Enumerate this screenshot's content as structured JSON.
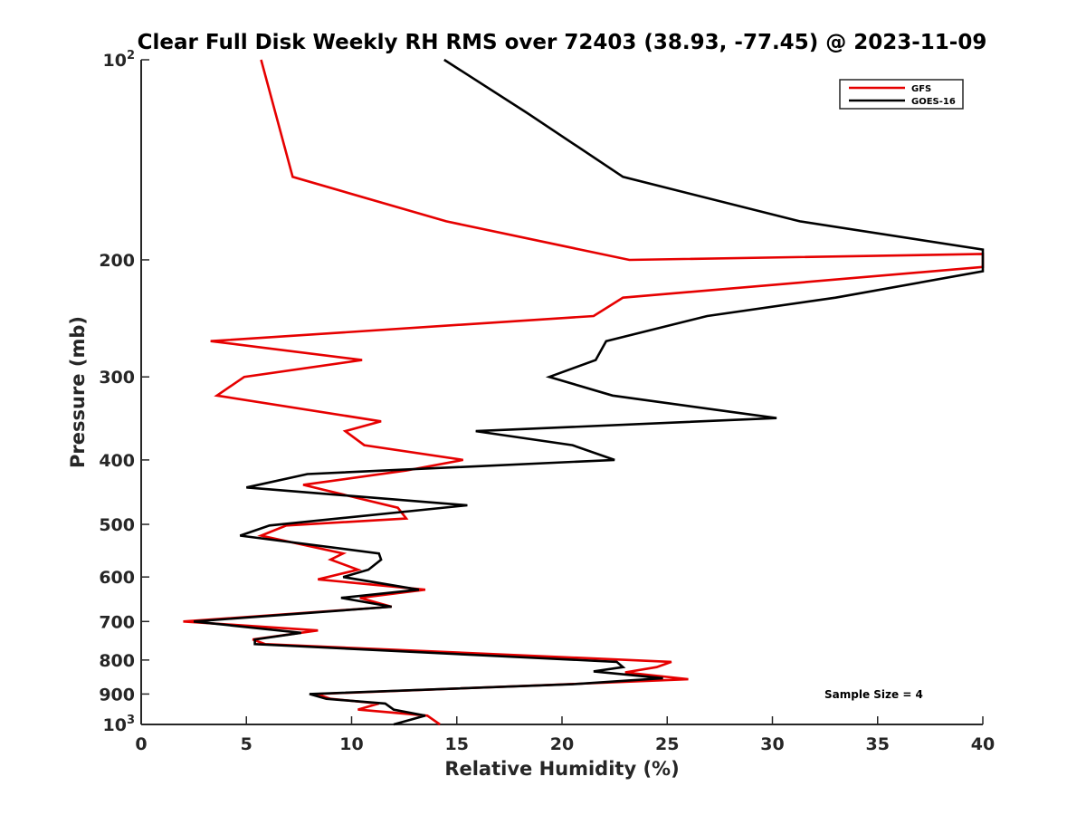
{
  "chart_data": {
    "type": "line",
    "title": "Clear Full Disk Weekly RH RMS over 72403 (38.93, -77.45) @ 2023-11-09",
    "xlabel": "Relative Humidity (%)",
    "ylabel": "Pressure (mb)",
    "xlim": [
      0,
      40
    ],
    "ylim": [
      100,
      1000
    ],
    "y_scale": "log",
    "y_reversed": true,
    "grid": false,
    "legend_position": "top-right",
    "x_ticks": [
      "0",
      "5",
      "10",
      "15",
      "20",
      "25",
      "30",
      "35",
      "40"
    ],
    "y_ticks": [
      {
        "value": 100,
        "base": "10",
        "exp": "2"
      },
      {
        "value": 200,
        "label": "200"
      },
      {
        "value": 300,
        "label": "300"
      },
      {
        "value": 400,
        "label": "400"
      },
      {
        "value": 500,
        "label": "500"
      },
      {
        "value": 600,
        "label": "600"
      },
      {
        "value": 700,
        "label": "700"
      },
      {
        "value": 800,
        "label": "800"
      },
      {
        "value": 900,
        "label": "900"
      },
      {
        "value": 1000,
        "base": "10",
        "exp": "3"
      }
    ],
    "annotation": "Sample Size = 4",
    "series": [
      {
        "name": "GFS",
        "color": "#e60000",
        "points": [
          [
            5.7,
            100
          ],
          [
            7.2,
            150
          ],
          [
            14.5,
            175
          ],
          [
            23.2,
            200
          ],
          [
            40,
            196
          ],
          [
            40,
            205
          ],
          [
            22.9,
            228
          ],
          [
            21.5,
            243
          ],
          [
            3.3,
            265
          ],
          [
            10.5,
            283
          ],
          [
            4.9,
            300
          ],
          [
            3.6,
            320
          ],
          [
            11.4,
            350
          ],
          [
            9.7,
            362
          ],
          [
            10.6,
            380
          ],
          [
            15.3,
            400
          ],
          [
            12.6,
            415
          ],
          [
            7.7,
            436
          ],
          [
            12.2,
            472
          ],
          [
            12.6,
            490
          ],
          [
            6.9,
            502
          ],
          [
            5.7,
            520
          ],
          [
            9.6,
            553
          ],
          [
            9.0,
            565
          ],
          [
            10.3,
            585
          ],
          [
            8.4,
            605
          ],
          [
            13.5,
            627
          ],
          [
            10.4,
            645
          ],
          [
            11.9,
            665
          ],
          [
            2.0,
            700
          ],
          [
            8.4,
            722
          ],
          [
            5.3,
            745
          ],
          [
            5.9,
            757
          ],
          [
            25.2,
            805
          ],
          [
            24.5,
            820
          ],
          [
            23.0,
            835
          ],
          [
            26.0,
            855
          ],
          [
            19.5,
            872
          ],
          [
            8.3,
            900
          ],
          [
            9.0,
            915
          ],
          [
            11.3,
            930
          ],
          [
            10.3,
            950
          ],
          [
            13.6,
            970
          ],
          [
            14.2,
            1000
          ]
        ]
      },
      {
        "name": "GOES-16",
        "color": "#000000",
        "points": [
          [
            14.4,
            100
          ],
          [
            18.3,
            120
          ],
          [
            22.9,
            150
          ],
          [
            31.3,
            175
          ],
          [
            40,
            193
          ],
          [
            40,
            208
          ],
          [
            33.0,
            228
          ],
          [
            26.9,
            243
          ],
          [
            22.1,
            265
          ],
          [
            21.6,
            283
          ],
          [
            19.4,
            300
          ],
          [
            22.4,
            320
          ],
          [
            30.2,
            346
          ],
          [
            15.9,
            362
          ],
          [
            20.5,
            380
          ],
          [
            22.5,
            400
          ],
          [
            7.9,
            420
          ],
          [
            5.0,
            440
          ],
          [
            15.5,
            468
          ],
          [
            6.1,
            502
          ],
          [
            4.7,
            520
          ],
          [
            11.3,
            553
          ],
          [
            11.4,
            565
          ],
          [
            10.8,
            585
          ],
          [
            9.6,
            600
          ],
          [
            13.2,
            627
          ],
          [
            9.5,
            645
          ],
          [
            11.9,
            665
          ],
          [
            2.5,
            700
          ],
          [
            7.6,
            728
          ],
          [
            5.4,
            745
          ],
          [
            5.4,
            757
          ],
          [
            22.6,
            805
          ],
          [
            22.9,
            820
          ],
          [
            21.5,
            832
          ],
          [
            24.8,
            852
          ],
          [
            20.5,
            870
          ],
          [
            8.0,
            900
          ],
          [
            8.8,
            915
          ],
          [
            11.6,
            930
          ],
          [
            12.0,
            950
          ],
          [
            13.5,
            970
          ],
          [
            12.0,
            1000
          ]
        ]
      }
    ]
  }
}
